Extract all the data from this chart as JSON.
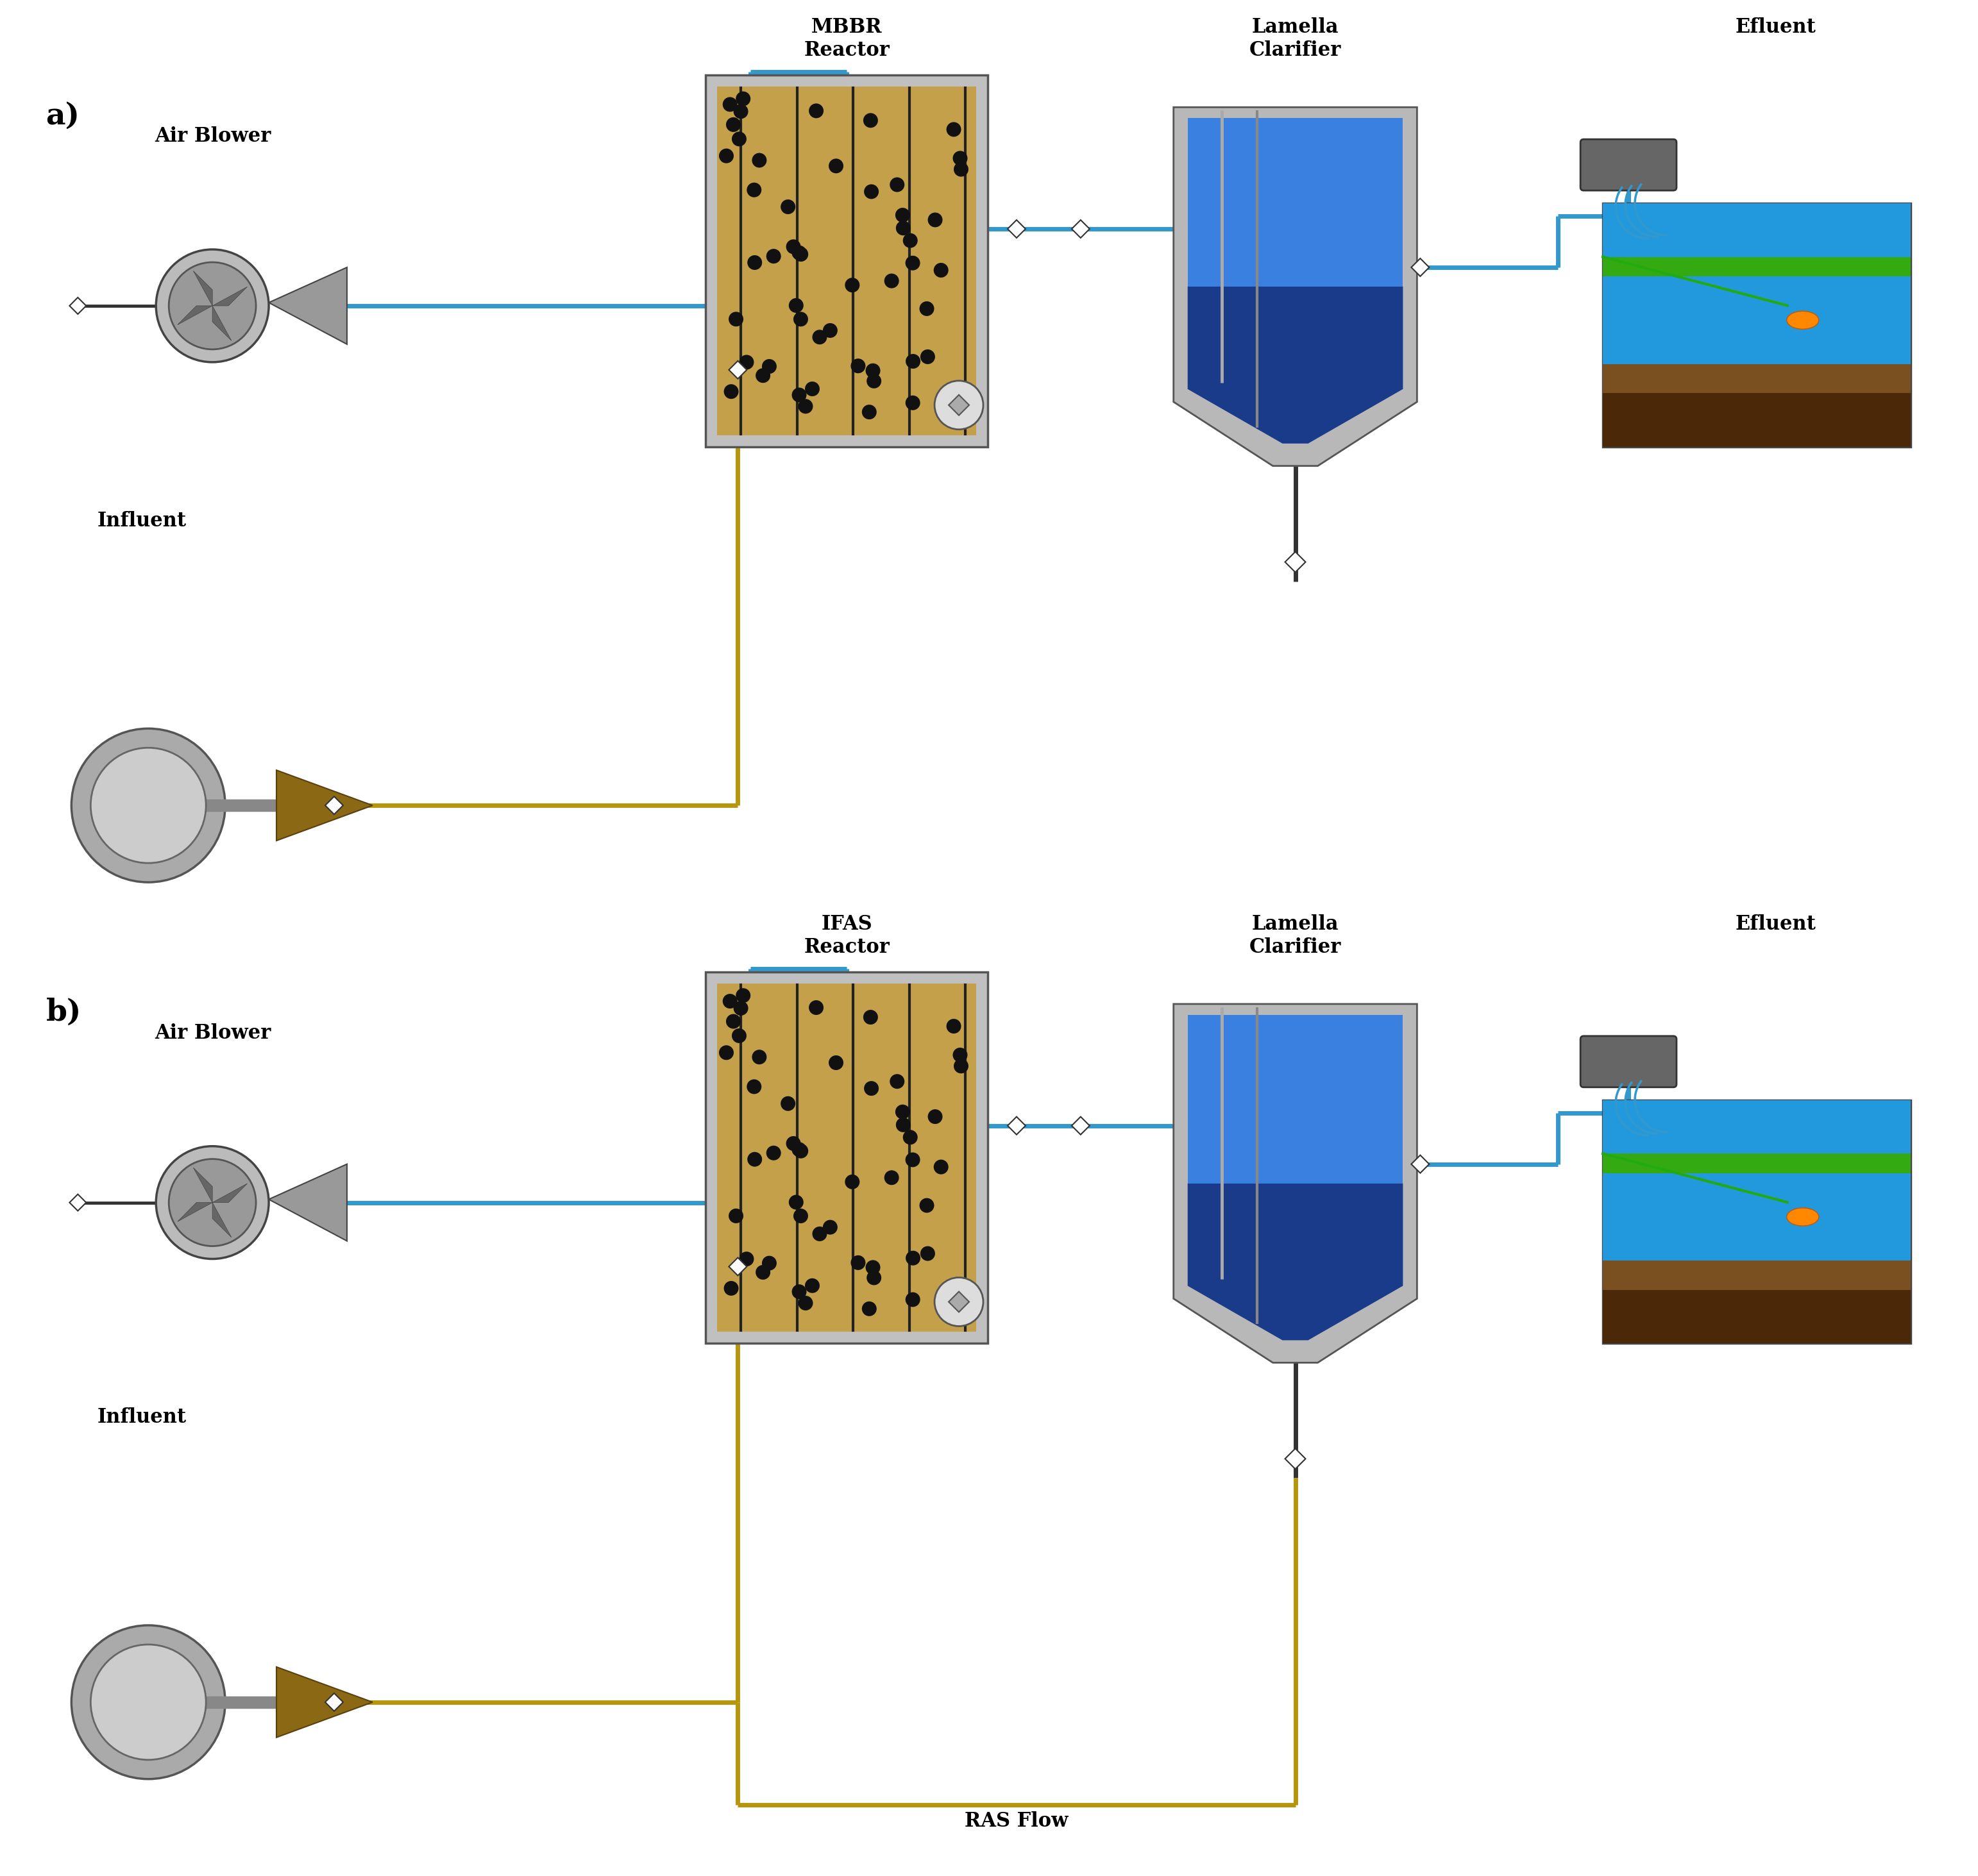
{
  "panel_a_label": "a)",
  "panel_b_label": "b)",
  "panel_a_reactor_label": "MBBR\nReactor",
  "panel_b_reactor_label": "IFAS\nReactor",
  "lamella_label": "Lamella\nClarifier",
  "efluent_label": "Efluent",
  "air_blower_label": "Air Blower",
  "influent_label": "Influent",
  "ras_flow_label": "RAS Flow",
  "bg_color": "#ffffff",
  "pipe_blue": "#3399cc",
  "pipe_gold": "#b8960c",
  "pipe_dark": "#222222",
  "reactor_gray": "#888888",
  "reactor_dark": "#555555",
  "clarifier_blue": "#2255aa",
  "clarifier_gray": "#aaaaaa",
  "text_color": "#000000",
  "label_fontsize": 22,
  "panel_label_fontsize": 34
}
